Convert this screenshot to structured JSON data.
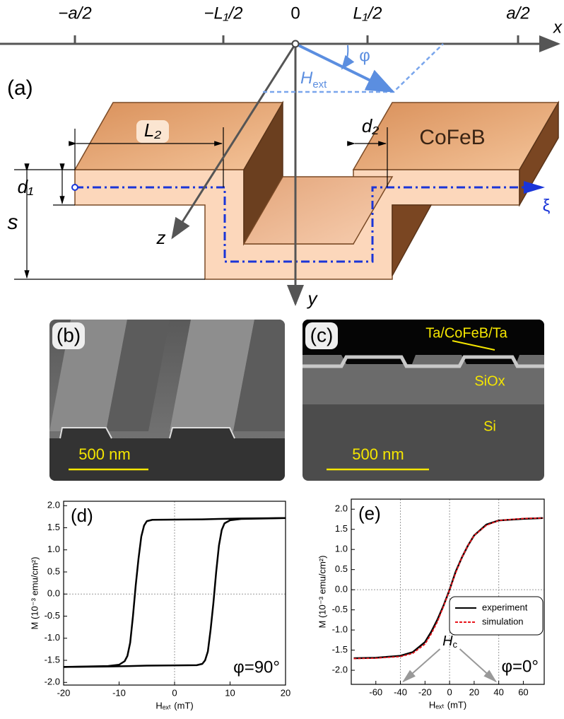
{
  "panel_a": {
    "label": "(a)",
    "x_ticks": [
      "−a/2",
      "−L₁/2",
      "0",
      "L₁/2",
      "a/2"
    ],
    "axes": {
      "x": "x",
      "y": "y",
      "z": "z",
      "xi": "ξ"
    },
    "field": {
      "main": "H",
      "sub": "ext"
    },
    "angle": "φ",
    "dims": {
      "L2": "L₂",
      "d2": "d₂",
      "d1": "d₁",
      "s": "s"
    },
    "material": "CoFeB"
  },
  "panel_b": {
    "label": "(b)",
    "scale": "500 nm"
  },
  "panel_c": {
    "label": "(c)",
    "layer": "Ta/CoFeB/Ta",
    "oxide": "SiOx",
    "substrate": "Si",
    "scale": "500 nm"
  },
  "chart_data": [
    {
      "type": "line",
      "panel_label": "(d)",
      "annotation": "φ=90°",
      "x_label": "Hₑₓₜ (mT)",
      "y_label": "M (10⁻³ emu/cm²)",
      "xlim": [
        -20,
        20
      ],
      "ylim": [
        -2.06,
        2.1
      ],
      "xticks": [
        -20,
        -10,
        0,
        10,
        20
      ],
      "yticks": [
        {
          "value": 2,
          "label": "2.0"
        },
        1.5,
        {
          "value": 1,
          "label": "1.0"
        },
        0.5,
        {
          "value": 0,
          "label": "0.0"
        },
        -0.5,
        {
          "value": -1,
          "label": "-1.0"
        },
        -1.5,
        {
          "value": -2,
          "label": "-2.0"
        }
      ],
      "grid_x": [
        0
      ],
      "grid_y": [
        0
      ],
      "series": [
        {
          "color": "#000000",
          "x": [
            20,
            12,
            8,
            5,
            -4,
            -5,
            -5.5,
            -6,
            -6.5,
            -7,
            -7.5,
            -8,
            -8.5,
            -9,
            -10,
            -12,
            -20
          ],
          "values": [
            1.72,
            1.71,
            1.7,
            1.69,
            1.68,
            1.65,
            1.55,
            1.3,
            0.8,
            0.2,
            -0.5,
            -1.1,
            -1.4,
            -1.52,
            -1.6,
            -1.63,
            -1.65
          ]
        },
        {
          "color": "#000000",
          "x": [
            -20,
            -12,
            -8,
            -5,
            4,
            5,
            5.5,
            6,
            6.5,
            7,
            7.5,
            8,
            8.5,
            9,
            10,
            12,
            20
          ],
          "values": [
            -1.65,
            -1.64,
            -1.63,
            -1.62,
            -1.61,
            -1.58,
            -1.5,
            -1.3,
            -0.8,
            -0.2,
            0.5,
            1.1,
            1.45,
            1.6,
            1.67,
            1.7,
            1.72
          ]
        }
      ]
    },
    {
      "type": "line",
      "panel_label": "(e)",
      "annotation": "φ=0°",
      "x_label": "Hₑₓₜ (mT)",
      "y_label": "M (10⁻³ emu/cm²)",
      "hc_label": {
        "main": "H",
        "sub": "c"
      },
      "xlim": [
        -80,
        77
      ],
      "ylim": [
        -2.35,
        2.25
      ],
      "xticks": [
        -60,
        -40,
        -20,
        0,
        20,
        40,
        60
      ],
      "yticks": [
        {
          "value": 2,
          "label": "2.0"
        },
        1.5,
        {
          "value": 1,
          "label": "1.0"
        },
        0.5,
        {
          "value": 0,
          "label": "0.0"
        },
        -0.5,
        {
          "value": -1,
          "label": "-1.0"
        },
        -1.5,
        {
          "value": -2,
          "label": "-2.0"
        }
      ],
      "grid_x": [
        -40,
        0,
        40
      ],
      "grid_y": [
        0
      ],
      "legend": "lower right",
      "series": [
        {
          "name": "experiment",
          "color": "#000000",
          "dash": false,
          "x": [
            -78,
            -60,
            -40,
            -30,
            -20,
            -15,
            -10,
            -5,
            0,
            5,
            10,
            15,
            20,
            30,
            40,
            60,
            76
          ],
          "values": [
            -1.7,
            -1.69,
            -1.64,
            -1.55,
            -1.3,
            -1.05,
            -0.75,
            -0.4,
            0,
            0.45,
            0.8,
            1.1,
            1.35,
            1.62,
            1.72,
            1.76,
            1.78
          ]
        },
        {
          "name": "simulation",
          "color": "#e8141b",
          "dash": true,
          "x": [
            -78,
            -60,
            -40,
            -30,
            -20,
            -15,
            -10,
            -5,
            0,
            5,
            10,
            15,
            20,
            30,
            40,
            60,
            76
          ],
          "values": [
            -1.71,
            -1.7,
            -1.66,
            -1.58,
            -1.35,
            -1.1,
            -0.8,
            -0.42,
            0,
            0.42,
            0.8,
            1.1,
            1.35,
            1.6,
            1.72,
            1.77,
            1.78
          ]
        }
      ]
    }
  ]
}
